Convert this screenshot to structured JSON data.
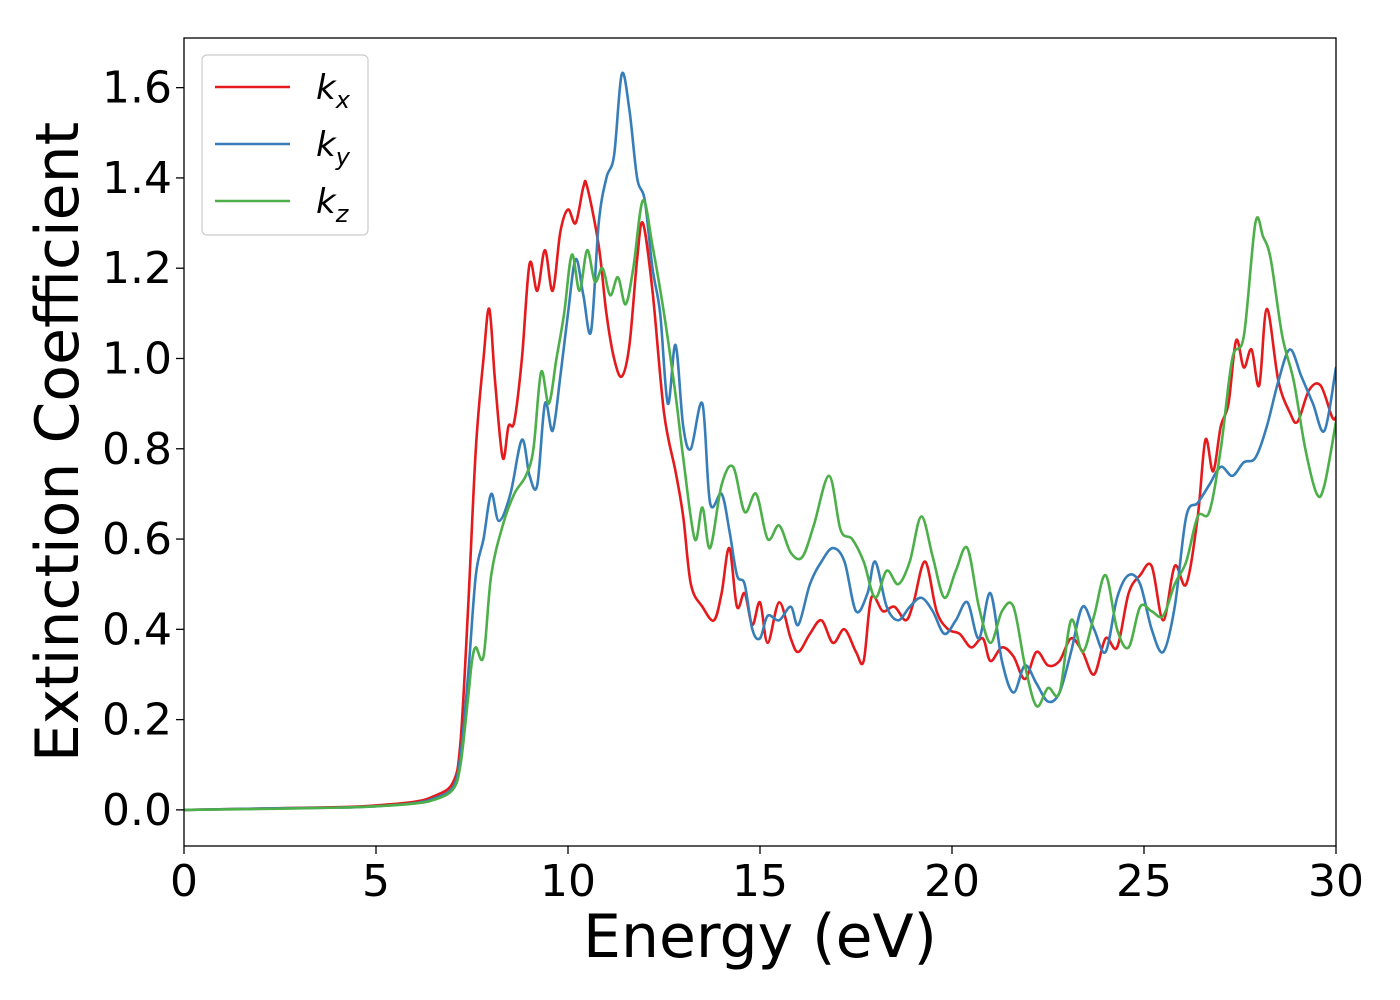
{
  "chart_data": {
    "type": "line",
    "xlabel": "Energy (eV)",
    "ylabel": "Extinction Coefficient",
    "xlim": [
      0,
      30
    ],
    "ylim": [
      -0.08,
      1.71
    ],
    "xticks": [
      "0",
      "5",
      "10",
      "15",
      "20",
      "25",
      "30"
    ],
    "yticks": [
      "0.0",
      "0.2",
      "0.4",
      "0.6",
      "0.8",
      "1.0",
      "1.2",
      "1.4",
      "1.6"
    ],
    "grid": false,
    "legend_position": "top-left",
    "series": [
      {
        "name": "k",
        "subscript": "x",
        "color": "#e41a1c",
        "x": [
          0,
          2,
          4,
          5,
          6,
          6.5,
          7,
          7.2,
          7.4,
          7.6,
          7.8,
          7.95,
          8.1,
          8.3,
          8.45,
          8.6,
          8.8,
          9.0,
          9.2,
          9.4,
          9.6,
          9.8,
          10.0,
          10.2,
          10.4,
          10.5,
          10.8,
          11.0,
          11.2,
          11.4,
          11.6,
          11.8,
          11.95,
          12.2,
          12.5,
          12.8,
          13.0,
          13.2,
          13.5,
          13.8,
          14.0,
          14.2,
          14.4,
          14.6,
          14.8,
          15.0,
          15.2,
          15.5,
          15.8,
          16.0,
          16.3,
          16.6,
          16.9,
          17.2,
          17.5,
          17.7,
          17.9,
          18.2,
          18.5,
          18.8,
          19.0,
          19.3,
          19.6,
          19.9,
          20.2,
          20.5,
          20.8,
          21.0,
          21.3,
          21.6,
          21.9,
          22.2,
          22.5,
          22.8,
          23.1,
          23.4,
          23.7,
          24.0,
          24.3,
          24.6,
          24.9,
          25.2,
          25.5,
          25.8,
          26.1,
          26.4,
          26.6,
          26.8,
          27.0,
          27.2,
          27.4,
          27.6,
          27.8,
          28.0,
          28.2,
          28.5,
          28.8,
          29.0,
          29.3,
          29.6,
          29.9,
          30.0
        ],
        "values": [
          0.0,
          0.003,
          0.006,
          0.01,
          0.018,
          0.03,
          0.06,
          0.15,
          0.45,
          0.8,
          1.0,
          1.11,
          0.95,
          0.78,
          0.85,
          0.86,
          1.0,
          1.21,
          1.15,
          1.24,
          1.15,
          1.28,
          1.33,
          1.3,
          1.38,
          1.38,
          1.25,
          1.1,
          1.0,
          0.96,
          1.03,
          1.22,
          1.3,
          1.15,
          0.88,
          0.75,
          0.65,
          0.5,
          0.45,
          0.42,
          0.48,
          0.58,
          0.45,
          0.48,
          0.41,
          0.46,
          0.37,
          0.46,
          0.38,
          0.35,
          0.39,
          0.42,
          0.37,
          0.4,
          0.35,
          0.33,
          0.47,
          0.44,
          0.45,
          0.42,
          0.46,
          0.55,
          0.44,
          0.4,
          0.39,
          0.36,
          0.38,
          0.33,
          0.36,
          0.34,
          0.29,
          0.35,
          0.32,
          0.33,
          0.38,
          0.35,
          0.3,
          0.38,
          0.36,
          0.48,
          0.52,
          0.54,
          0.42,
          0.54,
          0.5,
          0.65,
          0.82,
          0.75,
          0.85,
          0.9,
          1.04,
          0.98,
          1.02,
          0.94,
          1.11,
          0.95,
          0.88,
          0.86,
          0.93,
          0.94,
          0.87,
          0.87
        ]
      },
      {
        "name": "k",
        "subscript": "y",
        "color": "#377eb8",
        "x": [
          0,
          2,
          4,
          5,
          6,
          6.5,
          7,
          7.2,
          7.4,
          7.6,
          7.8,
          8.0,
          8.2,
          8.5,
          8.8,
          9.0,
          9.2,
          9.4,
          9.6,
          9.8,
          10.0,
          10.2,
          10.4,
          10.6,
          10.8,
          11.0,
          11.2,
          11.4,
          11.6,
          11.8,
          12.0,
          12.2,
          12.4,
          12.6,
          12.8,
          13.0,
          13.2,
          13.5,
          13.7,
          14.0,
          14.2,
          14.4,
          14.6,
          14.8,
          15.0,
          15.2,
          15.5,
          15.8,
          16.0,
          16.3,
          16.6,
          16.9,
          17.2,
          17.5,
          17.8,
          18.0,
          18.3,
          18.6,
          18.9,
          19.2,
          19.5,
          19.8,
          20.1,
          20.4,
          20.7,
          21.0,
          21.3,
          21.6,
          21.9,
          22.2,
          22.5,
          22.8,
          23.1,
          23.4,
          23.7,
          24.0,
          24.3,
          24.6,
          24.9,
          25.2,
          25.5,
          25.8,
          26.1,
          26.4,
          26.7,
          27.0,
          27.3,
          27.6,
          27.9,
          28.2,
          28.5,
          28.8,
          29.1,
          29.4,
          29.7,
          30.0
        ],
        "values": [
          0.0,
          0.003,
          0.005,
          0.008,
          0.015,
          0.025,
          0.05,
          0.12,
          0.3,
          0.52,
          0.6,
          0.7,
          0.64,
          0.7,
          0.82,
          0.74,
          0.72,
          0.9,
          0.84,
          0.96,
          1.1,
          1.22,
          1.14,
          1.06,
          1.3,
          1.4,
          1.45,
          1.63,
          1.55,
          1.4,
          1.35,
          1.2,
          1.1,
          0.9,
          1.03,
          0.85,
          0.8,
          0.9,
          0.68,
          0.7,
          0.62,
          0.52,
          0.5,
          0.4,
          0.38,
          0.43,
          0.42,
          0.45,
          0.41,
          0.5,
          0.55,
          0.58,
          0.55,
          0.44,
          0.48,
          0.55,
          0.45,
          0.42,
          0.45,
          0.47,
          0.44,
          0.39,
          0.42,
          0.46,
          0.38,
          0.48,
          0.33,
          0.26,
          0.32,
          0.28,
          0.24,
          0.26,
          0.35,
          0.45,
          0.4,
          0.35,
          0.47,
          0.52,
          0.5,
          0.4,
          0.35,
          0.45,
          0.65,
          0.68,
          0.72,
          0.76,
          0.74,
          0.77,
          0.78,
          0.85,
          0.95,
          1.02,
          0.96,
          0.9,
          0.84,
          0.98
        ]
      },
      {
        "name": "k",
        "subscript": "z",
        "color": "#4daf4a",
        "x": [
          0,
          2,
          4,
          5,
          6,
          6.5,
          7,
          7.2,
          7.4,
          7.5,
          7.6,
          7.8,
          8.0,
          8.3,
          8.6,
          8.9,
          9.1,
          9.3,
          9.5,
          9.7,
          9.9,
          10.1,
          10.3,
          10.5,
          10.7,
          10.9,
          11.1,
          11.3,
          11.5,
          11.7,
          11.95,
          12.2,
          12.5,
          12.8,
          13.0,
          13.3,
          13.5,
          13.7,
          14.0,
          14.3,
          14.6,
          14.9,
          15.2,
          15.5,
          15.8,
          16.1,
          16.4,
          16.8,
          17.1,
          17.4,
          17.7,
          18.0,
          18.3,
          18.6,
          18.9,
          19.2,
          19.5,
          19.8,
          20.1,
          20.4,
          20.7,
          21.0,
          21.3,
          21.6,
          21.9,
          22.2,
          22.5,
          22.8,
          23.1,
          23.4,
          23.7,
          24.0,
          24.3,
          24.6,
          24.9,
          25.2,
          25.5,
          25.8,
          26.1,
          26.4,
          26.7,
          27.0,
          27.3,
          27.6,
          27.9,
          28.1,
          28.3,
          28.6,
          28.9,
          29.2,
          29.5,
          29.7,
          30.0
        ],
        "values": [
          0.0,
          0.002,
          0.005,
          0.008,
          0.014,
          0.022,
          0.045,
          0.1,
          0.25,
          0.33,
          0.36,
          0.34,
          0.52,
          0.63,
          0.7,
          0.74,
          0.8,
          0.97,
          0.9,
          1.0,
          1.1,
          1.23,
          1.15,
          1.24,
          1.17,
          1.2,
          1.14,
          1.18,
          1.12,
          1.2,
          1.35,
          1.25,
          1.1,
          0.92,
          0.78,
          0.6,
          0.67,
          0.58,
          0.72,
          0.76,
          0.66,
          0.7,
          0.6,
          0.63,
          0.57,
          0.56,
          0.63,
          0.74,
          0.62,
          0.6,
          0.55,
          0.47,
          0.53,
          0.5,
          0.55,
          0.65,
          0.56,
          0.47,
          0.53,
          0.58,
          0.45,
          0.37,
          0.44,
          0.45,
          0.32,
          0.23,
          0.27,
          0.26,
          0.42,
          0.35,
          0.43,
          0.52,
          0.4,
          0.36,
          0.45,
          0.44,
          0.43,
          0.5,
          0.55,
          0.65,
          0.66,
          0.8,
          1.0,
          1.05,
          1.3,
          1.27,
          1.22,
          1.05,
          0.95,
          0.8,
          0.7,
          0.72,
          0.86
        ]
      }
    ]
  }
}
